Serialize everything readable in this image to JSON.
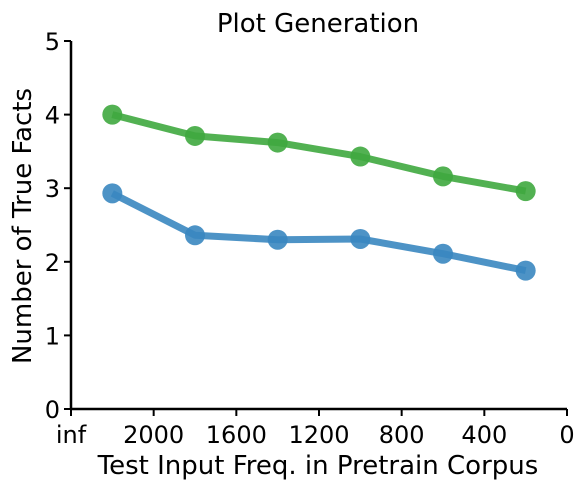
{
  "chart_data": {
    "type": "line",
    "title": "Plot Generation",
    "xlabel": "Test Input Freq. in Pretrain Corpus",
    "ylabel": "Number of True Facts",
    "x_tick_labels": [
      "inf",
      "2000",
      "1600",
      "1200",
      "800",
      "400",
      "0"
    ],
    "y_tick_labels": [
      "0",
      "1",
      "2",
      "3",
      "4",
      "5"
    ],
    "x_ticks": [
      2400,
      2000,
      1600,
      1200,
      800,
      400,
      0
    ],
    "x_reversed": true,
    "ylim": [
      0,
      5
    ],
    "grid": false,
    "x": [
      2200,
      1800,
      1400,
      1000,
      600,
      200
    ],
    "series": [
      {
        "color": "#3a87c0",
        "values": [
          2.93,
          2.36,
          2.3,
          2.31,
          2.11,
          1.88
        ]
      },
      {
        "color": "#3fa83f",
        "values": [
          4.0,
          3.71,
          3.62,
          3.43,
          3.16,
          2.96
        ]
      }
    ]
  }
}
